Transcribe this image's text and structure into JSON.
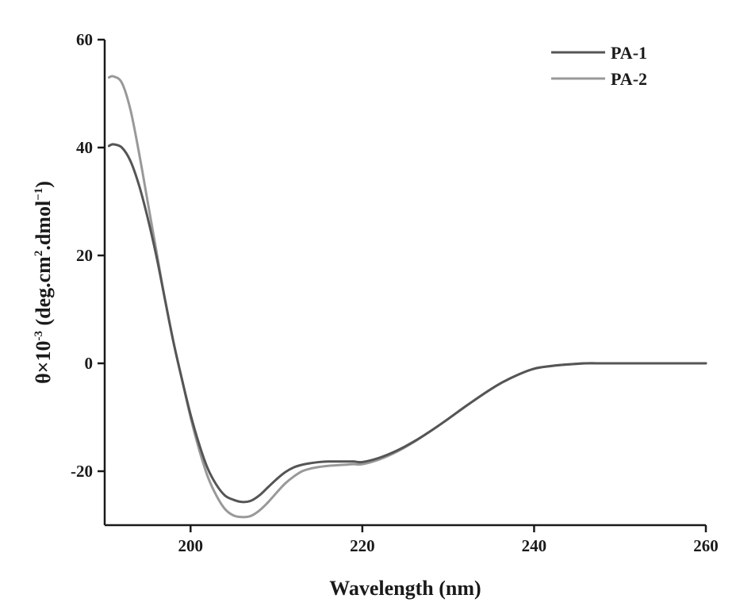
{
  "chart_data": {
    "type": "line",
    "xlabel": "Wavelength (nm)",
    "ylabel": {
      "prefix": "θ×10",
      "prefix_sup": "-3",
      "mid": " (deg.cm",
      "mid_sup": "2",
      "after": ".dmol",
      "after_sup": "−1",
      "suffix": ")"
    },
    "xlim": [
      190,
      260
    ],
    "ylim": [
      -30,
      60
    ],
    "xticks": [
      200,
      220,
      240,
      260
    ],
    "xtick_labels": [
      "200",
      "220",
      "240",
      "260"
    ],
    "yticks": [
      -20,
      0,
      20,
      40,
      60
    ],
    "ytick_labels": [
      "-20",
      "0",
      "20",
      "40",
      "60"
    ],
    "grid": false,
    "legend_position": "top-right",
    "series": [
      {
        "name": "PA-1",
        "color": "#555555",
        "x": [
          190.5,
          191,
          192,
          193,
          194,
          195,
          196,
          197,
          198,
          199,
          200,
          201,
          202,
          203,
          204,
          205,
          206,
          207,
          208,
          209,
          210,
          211,
          212,
          213,
          214,
          215,
          216,
          217,
          218,
          219,
          220,
          222,
          224,
          226,
          228,
          230,
          232,
          234,
          236,
          238,
          240,
          242,
          244,
          246,
          248,
          250,
          252,
          254,
          256,
          258,
          260
        ],
        "y": [
          40.3,
          40.6,
          40.0,
          37.5,
          33.0,
          27.0,
          20.0,
          12.0,
          4.0,
          -3.0,
          -9.5,
          -15.0,
          -19.5,
          -22.5,
          -24.5,
          -25.3,
          -25.7,
          -25.5,
          -24.5,
          -23.0,
          -21.5,
          -20.2,
          -19.3,
          -18.8,
          -18.5,
          -18.3,
          -18.2,
          -18.2,
          -18.2,
          -18.2,
          -18.3,
          -17.5,
          -16.2,
          -14.5,
          -12.5,
          -10.3,
          -8.0,
          -5.8,
          -3.8,
          -2.2,
          -1.0,
          -0.5,
          -0.2,
          0.0,
          0.0,
          0.0,
          0.0,
          0.0,
          0.0,
          0.0,
          0.0
        ]
      },
      {
        "name": "PA-2",
        "color": "#999999",
        "x": [
          190.5,
          191,
          192,
          193,
          194,
          195,
          196,
          197,
          198,
          199,
          200,
          201,
          202,
          203,
          204,
          205,
          206,
          207,
          208,
          209,
          210,
          211,
          212,
          213,
          214,
          215,
          216,
          217,
          218,
          219,
          220,
          222,
          224,
          226,
          228,
          230,
          232,
          234,
          236,
          238,
          240,
          242,
          244,
          246,
          248,
          250,
          252,
          254,
          256,
          258,
          260
        ],
        "y": [
          53.0,
          53.2,
          52.0,
          47.0,
          39.0,
          30.0,
          21.0,
          12.0,
          4.0,
          -3.0,
          -10.0,
          -16.0,
          -21.0,
          -24.5,
          -27.0,
          -28.2,
          -28.5,
          -28.3,
          -27.3,
          -25.8,
          -24.0,
          -22.3,
          -21.0,
          -20.0,
          -19.5,
          -19.2,
          -19.0,
          -18.9,
          -18.8,
          -18.7,
          -18.7,
          -17.8,
          -16.4,
          -14.6,
          -12.5,
          -10.3,
          -8.0,
          -5.8,
          -3.8,
          -2.2,
          -1.0,
          -0.5,
          -0.2,
          0.0,
          0.0,
          0.0,
          0.0,
          0.0,
          0.0,
          0.0,
          0.0
        ]
      }
    ]
  }
}
